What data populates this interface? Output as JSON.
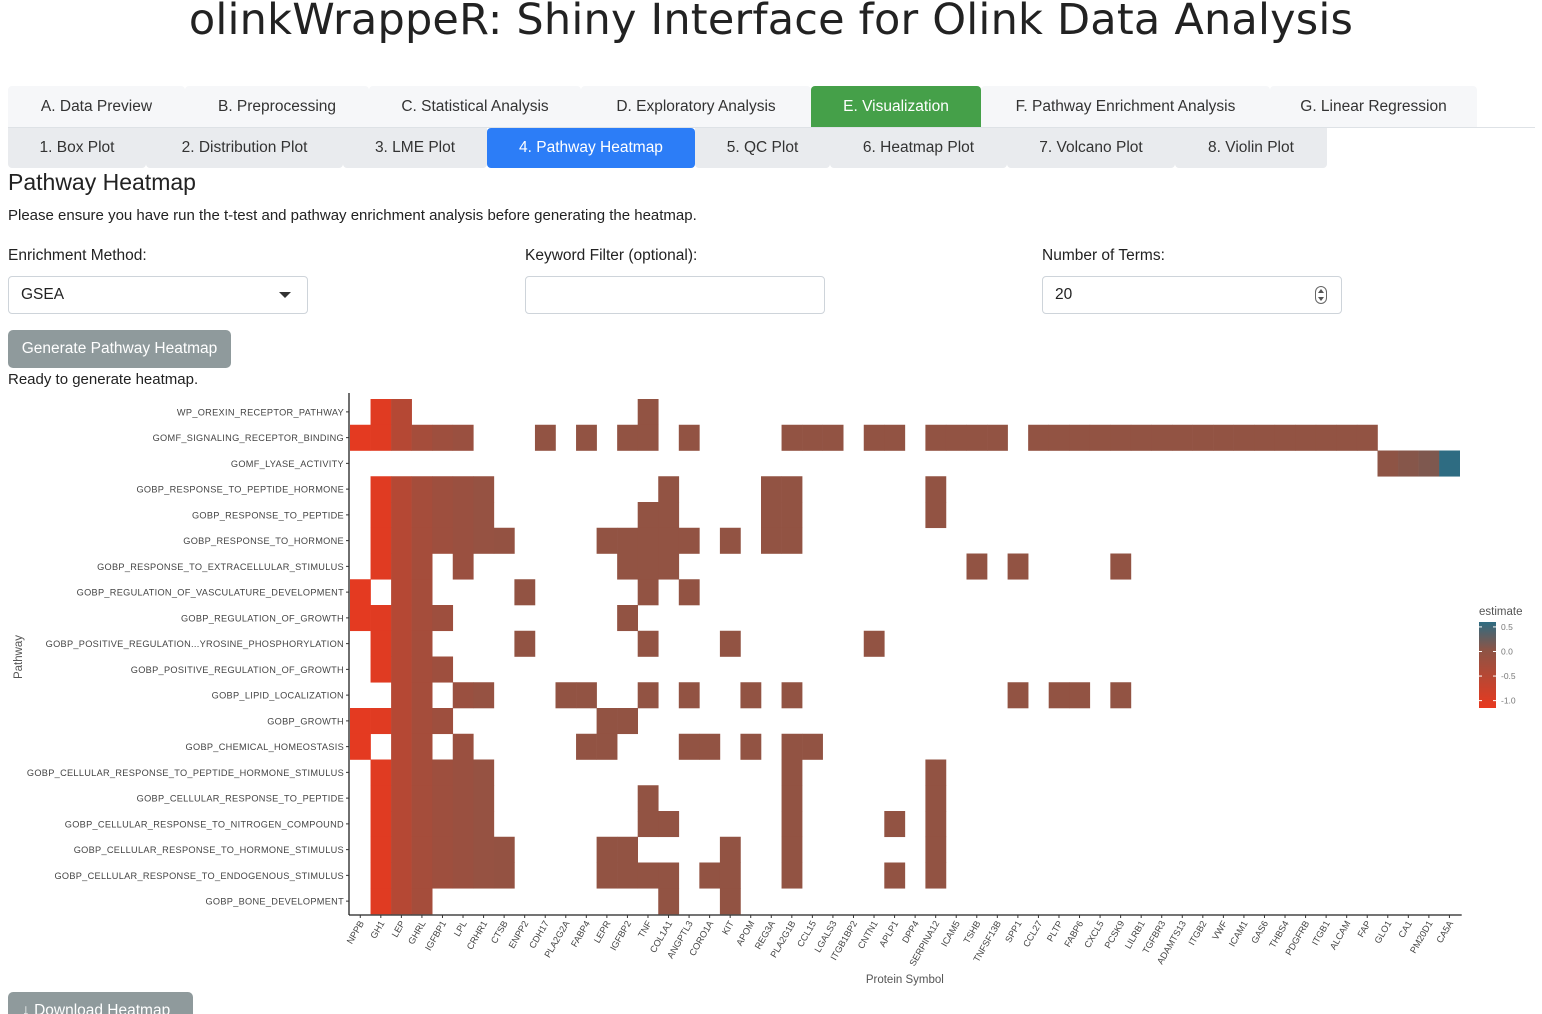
{
  "app_title": "olinkWrappeR: Shiny Interface for Olink Data Analysis",
  "main_tabs": [
    {
      "label": "A. Data Preview",
      "width": 177
    },
    {
      "label": "B. Preprocessing",
      "width": 184
    },
    {
      "label": "C. Statistical Analysis",
      "width": 212
    },
    {
      "label": "D. Exploratory Analysis",
      "width": 230
    },
    {
      "label": "E. Visualization",
      "width": 170
    },
    {
      "label": "F. Pathway Enrichment Analysis",
      "width": 289
    },
    {
      "label": "G. Linear Regression",
      "width": 207
    }
  ],
  "active_main_tab": 4,
  "sub_tabs": [
    {
      "label": "1. Box Plot",
      "width": 138
    },
    {
      "label": "2. Distribution Plot",
      "width": 197
    },
    {
      "label": "3. LME Plot",
      "width": 144
    },
    {
      "label": "4. Pathway Heatmap",
      "width": 208
    },
    {
      "label": "5. QC Plot",
      "width": 135
    },
    {
      "label": "6. Heatmap Plot",
      "width": 177
    },
    {
      "label": "7. Volcano Plot",
      "width": 168
    },
    {
      "label": "8. Violin Plot",
      "width": 152
    }
  ],
  "active_sub_tab": 3,
  "section_title": "Pathway Heatmap",
  "instructions": "Please ensure you have run the t-test and pathway enrichment analysis before generating the heatmap.",
  "form": {
    "method_label": "Enrichment Method:",
    "method_value": "GSEA",
    "keyword_label": "Keyword Filter (optional):",
    "keyword_value": "",
    "terms_label": "Number of Terms:",
    "terms_value": "20"
  },
  "generate_button": "Generate Pathway Heatmap",
  "status": "Ready to generate heatmap.",
  "download_button": "Download Heatmap",
  "download_icon": "download-arrow-icon",
  "chart_data": {
    "type": "heatmap",
    "xlabel": "Protein Symbol",
    "ylabel": "Pathway",
    "legend": {
      "title": "estimate",
      "ticks": [
        0.5,
        0.0,
        -0.5,
        -1.0
      ],
      "range": [
        -1.15,
        0.6
      ],
      "low_color": "#e8391f",
      "mid_color": "#8e5445",
      "high_color": "#2e6c82",
      "placement": "right"
    },
    "x": [
      "NPPB",
      "GH1",
      "LEP",
      "GHRL",
      "IGFBP1",
      "LPL",
      "CRHR1",
      "CTSB",
      "ENPP2",
      "CDH17",
      "PLA2G2A",
      "FABP4",
      "LEPR",
      "IGFBP2",
      "TNF",
      "COL1A1",
      "ANGPTL3",
      "CORO1A",
      "KIT",
      "APOM",
      "REG3A",
      "PLA2G1B",
      "CCL15",
      "LGALS3",
      "ITGB1BP2",
      "CNTN1",
      "APLP1",
      "DPP4",
      "SERPINA12",
      "ICAM5",
      "TSHB",
      "TNFSF13B",
      "SPP1",
      "CCL27",
      "PLTP",
      "FABP6",
      "CXCL5",
      "PCSK9",
      "LILRB1",
      "TGFBR3",
      "ADAMTS13",
      "ITGB2",
      "VWF",
      "ICAM1",
      "GAS6",
      "THBS4",
      "PDGFRB",
      "ITGB1",
      "ALCAM",
      "FAP",
      "GLO1",
      "CA1",
      "PM20D1",
      "CA5A"
    ],
    "pathways": [
      "WP_OREXIN_RECEPTOR_PATHWAY",
      "GOMF_SIGNALING_RECEPTOR_BINDING",
      "GOMF_LYASE_ACTIVITY",
      "GOBP_RESPONSE_TO_PEPTIDE_HORMONE",
      "GOBP_RESPONSE_TO_PEPTIDE",
      "GOBP_RESPONSE_TO_HORMONE",
      "GOBP_RESPONSE_TO_EXTRACELLULAR_STIMULUS",
      "GOBP_REGULATION_OF_VASCULATURE_DEVELOPMENT",
      "GOBP_REGULATION_OF_GROWTH",
      "GOBP_POSITIVE_REGULATION...YROSINE_PHOSPHORYLATION",
      "GOBP_POSITIVE_REGULATION_OF_GROWTH",
      "GOBP_LIPID_LOCALIZATION",
      "GOBP_GROWTH",
      "GOBP_CHEMICAL_HOMEOSTASIS",
      "GOBP_CELLULAR_RESPONSE_TO_PEPTIDE_HORMONE_STIMULUS",
      "GOBP_CELLULAR_RESPONSE_TO_PEPTIDE",
      "GOBP_CELLULAR_RESPONSE_TO_NITROGEN_COMPOUND",
      "GOBP_CELLULAR_RESPONSE_TO_HORMONE_STIMULUS",
      "GOBP_CELLULAR_RESPONSE_TO_ENDOGENOUS_STIMULUS",
      "GOBP_BONE_DEVELOPMENT"
    ],
    "estimates": [
      -1.1,
      -1.05,
      -0.5,
      -0.3,
      -0.2,
      -0.15,
      -0.1,
      -0.08,
      -0.05,
      -0.05,
      -0.05,
      -0.05,
      -0.05,
      -0.05,
      -0.05,
      -0.05,
      -0.05,
      -0.05,
      -0.05,
      -0.05,
      -0.05,
      -0.05,
      -0.05,
      -0.05,
      -0.05,
      -0.05,
      -0.05,
      -0.05,
      -0.05,
      -0.05,
      -0.05,
      -0.05,
      -0.05,
      -0.05,
      -0.05,
      -0.05,
      -0.05,
      -0.05,
      -0.05,
      -0.05,
      -0.05,
      -0.05,
      -0.05,
      -0.05,
      -0.05,
      -0.05,
      -0.05,
      -0.05,
      -0.05,
      -0.05,
      0.0,
      0.05,
      0.1,
      0.6
    ],
    "membership": [
      [
        1,
        2,
        14
      ],
      [
        0,
        1,
        2,
        3,
        4,
        5,
        9,
        11,
        13,
        14,
        16,
        21,
        22,
        23,
        25,
        26,
        28,
        29,
        30,
        31,
        33,
        34,
        35,
        36,
        37,
        38,
        39,
        40,
        41,
        42,
        43,
        44,
        45,
        46,
        47,
        48,
        49
      ],
      [
        50,
        51,
        52,
        53
      ],
      [
        1,
        2,
        3,
        4,
        5,
        6,
        15,
        20,
        21,
        28
      ],
      [
        1,
        2,
        3,
        4,
        5,
        6,
        14,
        15,
        20,
        21,
        28
      ],
      [
        1,
        2,
        3,
        4,
        5,
        6,
        7,
        12,
        13,
        14,
        15,
        16,
        18,
        20,
        21
      ],
      [
        1,
        2,
        3,
        5,
        13,
        14,
        15,
        30,
        32,
        37
      ],
      [
        0,
        2,
        3,
        8,
        14,
        16
      ],
      [
        0,
        1,
        2,
        3,
        4,
        13
      ],
      [
        1,
        2,
        3,
        8,
        14,
        18,
        25
      ],
      [
        1,
        2,
        3,
        4
      ],
      [
        2,
        3,
        5,
        6,
        10,
        11,
        14,
        16,
        19,
        21,
        32,
        34,
        35,
        37
      ],
      [
        0,
        1,
        2,
        3,
        4,
        12,
        13
      ],
      [
        0,
        2,
        3,
        5,
        11,
        12,
        16,
        17,
        19,
        21,
        22
      ],
      [
        1,
        2,
        3,
        4,
        5,
        6,
        21,
        28
      ],
      [
        1,
        2,
        3,
        4,
        5,
        6,
        14,
        21,
        28
      ],
      [
        1,
        2,
        3,
        4,
        5,
        6,
        14,
        15,
        21,
        26,
        28
      ],
      [
        1,
        2,
        3,
        4,
        5,
        6,
        7,
        12,
        13,
        18,
        21,
        28
      ],
      [
        1,
        2,
        3,
        4,
        5,
        6,
        7,
        12,
        13,
        14,
        15,
        17,
        18,
        21,
        26,
        28
      ],
      [
        1,
        2,
        3,
        15,
        18
      ]
    ]
  }
}
